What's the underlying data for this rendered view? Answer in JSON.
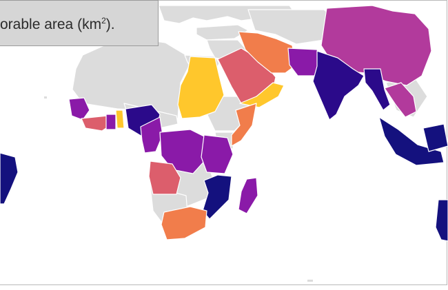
{
  "caption": {
    "text_before": "orable area (km",
    "superscript": "2",
    "text_after": ")."
  },
  "colors": {
    "no_data": "#dcdcdc",
    "border": "#ffffff",
    "yellow": "#ffc72c",
    "orange": "#f17d4b",
    "salmon": "#dc5e6c",
    "magenta": "#b23a9c",
    "purple": "#8a1aa8",
    "indigo": "#2b0a8a",
    "navy": "#14117e"
  },
  "regions": [
    {
      "name": "sudan",
      "color": "yellow"
    },
    {
      "name": "yemen",
      "color": "yellow"
    },
    {
      "name": "togo",
      "color": "yellow"
    },
    {
      "name": "saudi-arabia",
      "color": "salmon"
    },
    {
      "name": "iran",
      "color": "orange"
    },
    {
      "name": "angola",
      "color": "salmon"
    },
    {
      "name": "south-africa",
      "color": "orange"
    },
    {
      "name": "somalia",
      "color": "orange"
    },
    {
      "name": "sierra-leone-liberia",
      "color": "salmon"
    },
    {
      "name": "china",
      "color": "magenta"
    },
    {
      "name": "thailand",
      "color": "magenta"
    },
    {
      "name": "guinea",
      "color": "purple"
    },
    {
      "name": "cameroon",
      "color": "purple"
    },
    {
      "name": "drc",
      "color": "purple"
    },
    {
      "name": "tanzania",
      "color": "purple"
    },
    {
      "name": "madagascar",
      "color": "purple"
    },
    {
      "name": "pakistan",
      "color": "purple"
    },
    {
      "name": "nigeria",
      "color": "indigo"
    },
    {
      "name": "india",
      "color": "indigo"
    },
    {
      "name": "myanmar",
      "color": "indigo"
    },
    {
      "name": "mozambique",
      "color": "navy"
    },
    {
      "name": "indonesia",
      "color": "navy"
    },
    {
      "name": "brazil",
      "color": "navy"
    },
    {
      "name": "australia",
      "color": "navy"
    }
  ]
}
